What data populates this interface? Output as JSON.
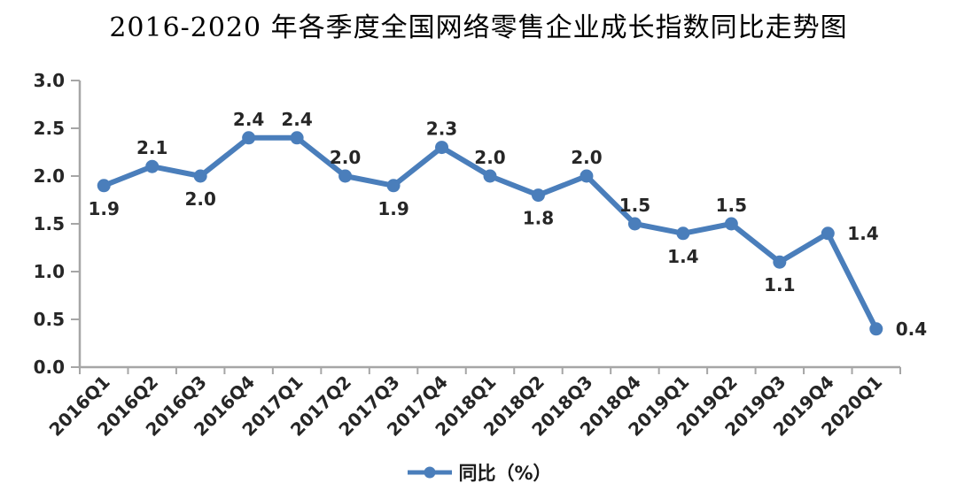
{
  "colors": {
    "line": "#4a7ebb",
    "axis": "#a6a6a6",
    "label_text": "#262626",
    "title_text": "#000000"
  },
  "chart_data": {
    "type": "line",
    "title": "2016-2020 年各季度全国网络零售企业成长指数同比走势图",
    "categories": [
      "2016Q1",
      "2016Q2",
      "2016Q3",
      "2016Q4",
      "2017Q1",
      "2017Q2",
      "2017Q3",
      "2017Q4",
      "2018Q1",
      "2018Q2",
      "2018Q3",
      "2018Q4",
      "2019Q1",
      "2019Q2",
      "2019Q3",
      "2019Q4",
      "2020Q1"
    ],
    "series": [
      {
        "name": "同比（%）",
        "values": [
          1.9,
          2.1,
          2.0,
          2.4,
          2.4,
          2.0,
          1.9,
          2.3,
          2.0,
          1.8,
          2.0,
          1.5,
          1.4,
          1.5,
          1.1,
          1.4,
          0.4
        ]
      }
    ],
    "label_positions": [
      "below",
      "above",
      "below",
      "above",
      "above",
      "above",
      "below",
      "above",
      "above",
      "below",
      "above",
      "above",
      "below",
      "above",
      "below",
      "right",
      "right"
    ],
    "xlabel": "",
    "ylabel": "",
    "ylim": [
      0.0,
      3.0
    ],
    "ytick_step": 0.5,
    "grid": false,
    "legend_position": "bottom",
    "x_label_rotation": -45
  }
}
